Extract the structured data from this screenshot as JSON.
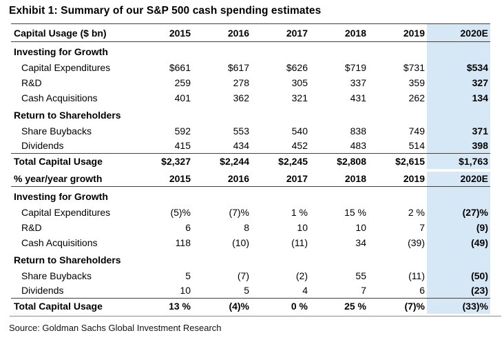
{
  "theme": {
    "accent_color": "#d6e8f5",
    "rule_color": "#404040",
    "separator_color": "#8c8c8c"
  },
  "chart_data": {
    "type": "table",
    "title": "Exhibit 1: Summary of our S&P 500 cash spending estimates",
    "source": "Source: Goldman Sachs Global Investment Research",
    "columns": [
      "2015",
      "2016",
      "2017",
      "2018",
      "2019",
      "2020E"
    ],
    "highlighted_column": "2020E",
    "tables": [
      {
        "header": {
          "label": "Capital Usage ($ bn)",
          "years": [
            "2015",
            "2016",
            "2017",
            "2018",
            "2019",
            "2020E"
          ]
        },
        "rows": [
          {
            "type": "section",
            "label": "Investing for Growth",
            "values": [
              "",
              "",
              "",
              "",
              "",
              ""
            ]
          },
          {
            "type": "item",
            "label": "Capital Expenditures",
            "values": [
              "$661",
              "$617",
              "$626",
              "$719",
              "$731",
              "$534"
            ]
          },
          {
            "type": "item",
            "label": "R&D",
            "values": [
              "259",
              "278",
              "305",
              "337",
              "359",
              "327"
            ]
          },
          {
            "type": "item",
            "label": "Cash Acquisitions",
            "values": [
              "401",
              "362",
              "321",
              "431",
              "262",
              "134"
            ]
          },
          {
            "type": "section",
            "label": "Return to Shareholders",
            "values": [
              "",
              "",
              "",
              "",
              "",
              ""
            ]
          },
          {
            "type": "item",
            "label": "Share Buybacks",
            "values": [
              "592",
              "553",
              "540",
              "838",
              "749",
              "371"
            ]
          },
          {
            "type": "item",
            "label": "Dividends",
            "values": [
              "415",
              "434",
              "452",
              "483",
              "514",
              "398"
            ]
          },
          {
            "type": "total",
            "label": "Total Capital Usage",
            "values": [
              "$2,327",
              "$2,244",
              "$2,245",
              "$2,808",
              "$2,615",
              "$1,763"
            ]
          }
        ]
      },
      {
        "header": {
          "label": "% year/year growth",
          "years": [
            "2015",
            "2016",
            "2017",
            "2018",
            "2019",
            "2020E"
          ]
        },
        "rows": [
          {
            "type": "section",
            "label": "Investing for Growth",
            "values": [
              "",
              "",
              "",
              "",
              "",
              ""
            ]
          },
          {
            "type": "item",
            "label": "Capital Expenditures",
            "values": [
              "(5)%",
              "(7)%",
              "1 %",
              "15 %",
              "2 %",
              "(27)%"
            ]
          },
          {
            "type": "item",
            "label": "R&D",
            "values": [
              "6",
              "8",
              "10",
              "10",
              "7",
              "(9)"
            ]
          },
          {
            "type": "item",
            "label": "Cash Acquisitions",
            "values": [
              "118",
              "(10)",
              "(11)",
              "34",
              "(39)",
              "(49)"
            ]
          },
          {
            "type": "section",
            "label": "Return to Shareholders",
            "values": [
              "",
              "",
              "",
              "",
              "",
              ""
            ]
          },
          {
            "type": "item",
            "label": "Share Buybacks",
            "values": [
              "5",
              "(7)",
              "(2)",
              "55",
              "(11)",
              "(50)"
            ]
          },
          {
            "type": "item",
            "label": "Dividends",
            "values": [
              "10",
              "5",
              "4",
              "7",
              "6",
              "(23)"
            ]
          },
          {
            "type": "total",
            "label": "Total Capital Usage",
            "values": [
              "13 %",
              "(4)%",
              "0 %",
              "25 %",
              "(7)%",
              "(33)%"
            ]
          }
        ]
      }
    ]
  }
}
